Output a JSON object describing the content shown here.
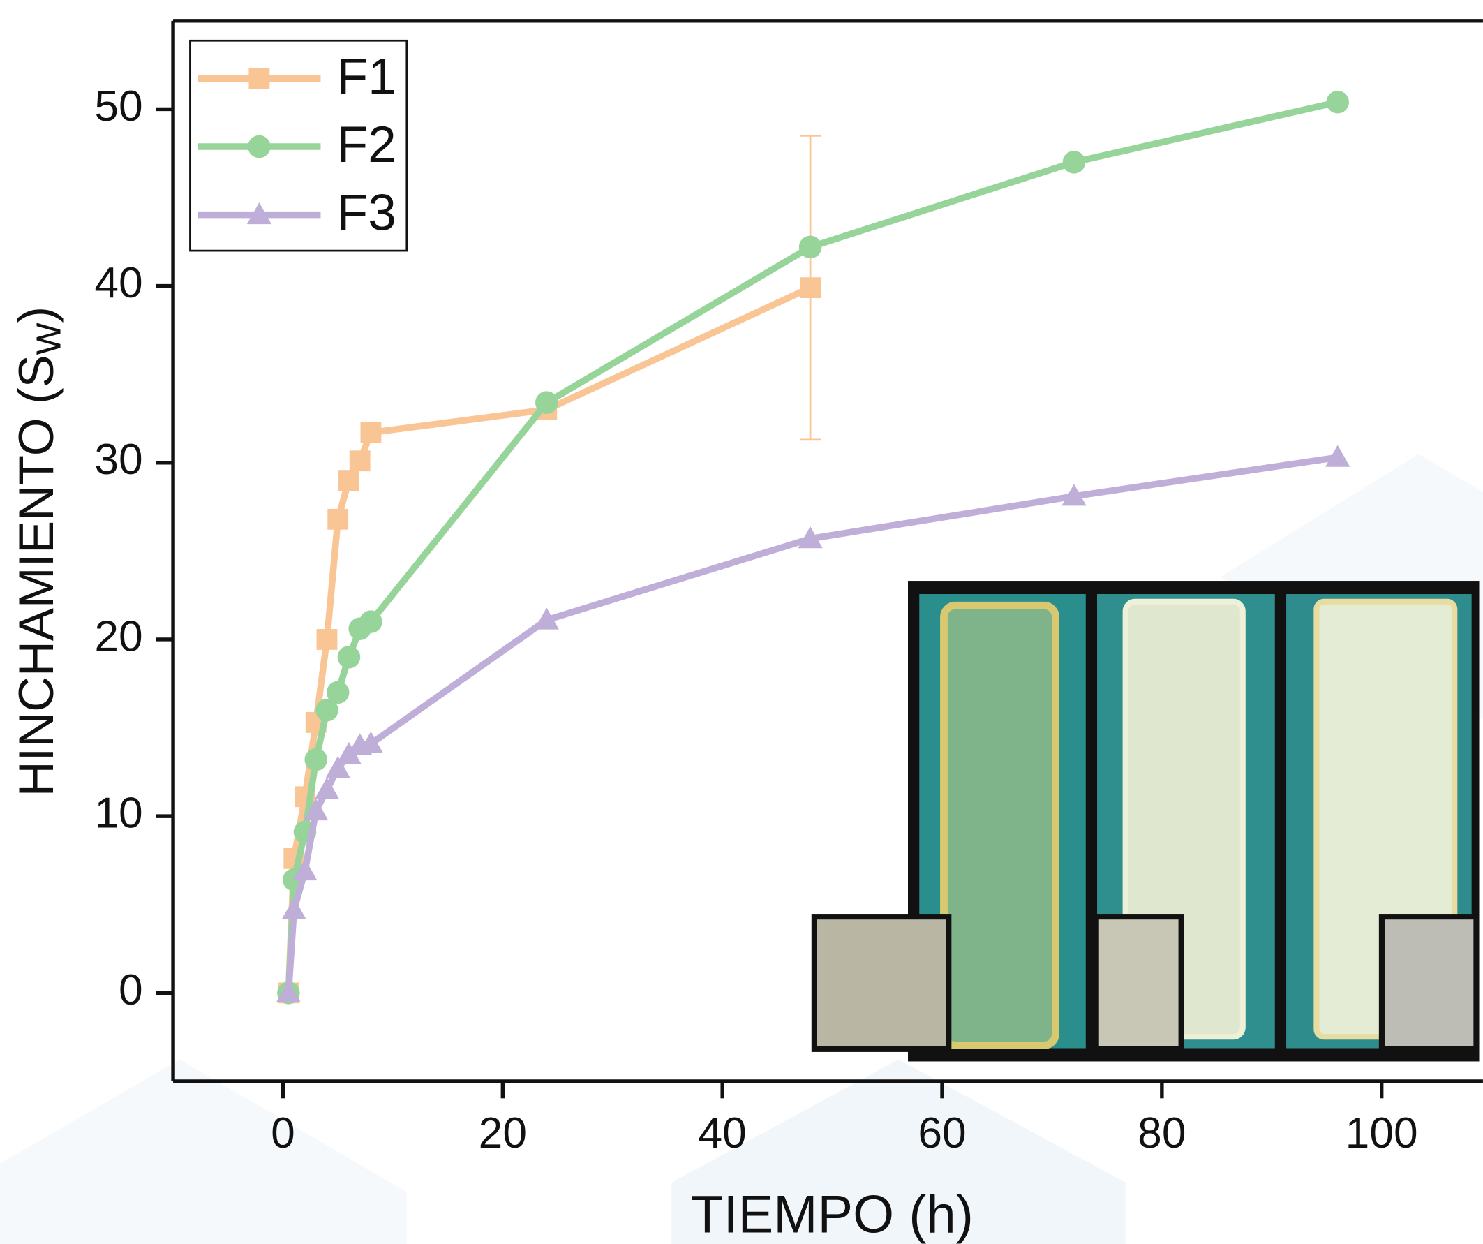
{
  "chart_data": {
    "type": "line",
    "xlabel": "TIEMPO (h)",
    "ylabel": [
      "HINCHAMIENTO (S",
      "W",
      ")"
    ],
    "xlim": [
      -10,
      110
    ],
    "xticks": [
      0,
      20,
      40,
      60,
      80,
      100
    ],
    "ylim": [
      -5,
      55
    ],
    "yticks": [
      0,
      10,
      20,
      30,
      40,
      50
    ],
    "legend": "top-left",
    "series": [
      {
        "name": "F1",
        "color": "#f9c595",
        "marker": "square",
        "x": [
          0.5,
          1,
          2,
          3,
          4,
          5,
          6,
          7,
          8,
          24,
          48
        ],
        "values": [
          0,
          7.6,
          11.1,
          15.3,
          20.0,
          26.8,
          29.0,
          30.1,
          31.7,
          33.0,
          39.9
        ],
        "errors": [
          null,
          null,
          null,
          null,
          null,
          null,
          null,
          null,
          null,
          null,
          8.6
        ]
      },
      {
        "name": "F2",
        "color": "#96d49a",
        "marker": "circle",
        "x": [
          0.5,
          1,
          2,
          3,
          4,
          5,
          6,
          7,
          8,
          24,
          48,
          72,
          96
        ],
        "values": [
          0,
          6.4,
          9.1,
          13.2,
          16.0,
          17.0,
          19.0,
          20.6,
          21.0,
          33.4,
          42.2,
          47.0,
          50.4
        ]
      },
      {
        "name": "F3",
        "color": "#bfaed8",
        "marker": "triangle",
        "x": [
          0.5,
          1,
          2,
          3,
          4,
          5,
          6,
          7,
          8,
          24,
          48,
          72,
          96
        ],
        "values": [
          0,
          4.7,
          6.9,
          10.3,
          11.5,
          12.7,
          13.5,
          14.0,
          14.1,
          21.1,
          25.7,
          28.1,
          30.3
        ]
      }
    ]
  }
}
